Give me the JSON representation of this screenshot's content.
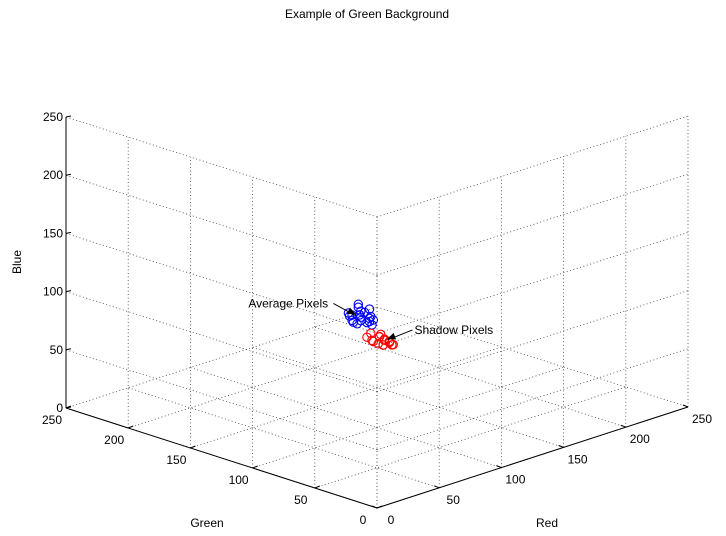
{
  "chart_data": {
    "type": "scatter",
    "projection": "3d",
    "title": "Example of Green Background",
    "xlabel": "Red",
    "ylabel": "Green",
    "zlabel": "Blue",
    "xlim": [
      0,
      250
    ],
    "ylim": [
      0,
      250
    ],
    "zlim": [
      0,
      250
    ],
    "xticks": [
      0,
      50,
      100,
      150,
      200,
      250
    ],
    "yticks": [
      0,
      50,
      100,
      150,
      200,
      250
    ],
    "zticks": [
      0,
      50,
      100,
      150,
      200,
      250
    ],
    "grid": true,
    "series": [
      {
        "color": "#0000ff",
        "marker": "circle",
        "points": [
          [
            75,
            90,
            118
          ],
          [
            80,
            95,
            112
          ],
          [
            82,
            92,
            108
          ],
          [
            78,
            98,
            105
          ],
          [
            85,
            90,
            104
          ],
          [
            83,
            96,
            102
          ],
          [
            88,
            94,
            100
          ],
          [
            80,
            100,
            99
          ],
          [
            86,
            99,
            97
          ],
          [
            90,
            96,
            96
          ],
          [
            84,
            103,
            95
          ],
          [
            92,
            100,
            93
          ],
          [
            88,
            104,
            92
          ],
          [
            94,
            98,
            91
          ],
          [
            86,
            108,
            98
          ],
          [
            79,
            92,
            110
          ],
          [
            91,
            97,
            106
          ],
          [
            87,
            101,
            101
          ],
          [
            82,
            105,
            103
          ],
          [
            89,
            92,
            99
          ]
        ]
      },
      {
        "color": "#ff0000",
        "marker": "circle",
        "points": [
          [
            180,
            185,
            24
          ],
          [
            182,
            180,
            22
          ],
          [
            185,
            183,
            20
          ],
          [
            178,
            186,
            21
          ],
          [
            184,
            178,
            19
          ],
          [
            187,
            181,
            18
          ],
          [
            181,
            184,
            17
          ],
          [
            186,
            176,
            17
          ],
          [
            189,
            179,
            16
          ],
          [
            183,
            182,
            15
          ],
          [
            188,
            175,
            15
          ],
          [
            190,
            178,
            13
          ],
          [
            185,
            180,
            14
          ],
          [
            179,
            183,
            19
          ],
          [
            187,
            184,
            21
          ],
          [
            182,
            177,
            16
          ]
        ]
      }
    ],
    "annotations": [
      {
        "text": "Average Pixels",
        "x": 80,
        "y": 95,
        "z": 105
      },
      {
        "text": "Shadow Pixels",
        "x": 186,
        "y": 180,
        "z": 18
      }
    ]
  }
}
